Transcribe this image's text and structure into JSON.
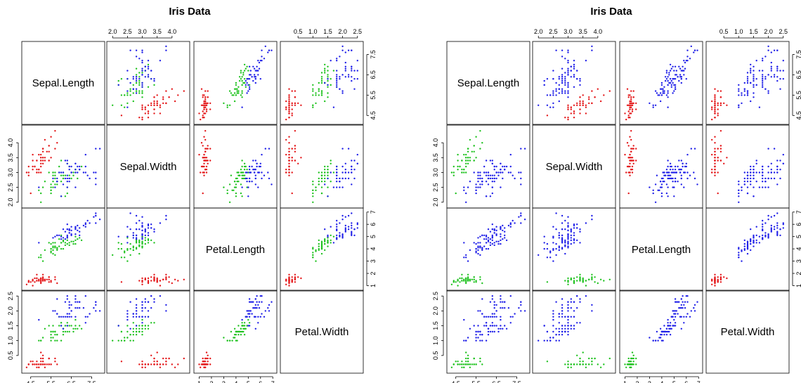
{
  "chart_data": [
    {
      "type": "scatter",
      "title": "Iris Data",
      "variables": [
        "Sepal.Length",
        "Sepal.Width",
        "Petal.Length",
        "Petal.Width"
      ],
      "axes": {
        "Sepal.Length": {
          "lim": [
            4.2,
            8.0
          ],
          "ticks": [
            4.5,
            5.5,
            6.5,
            7.5
          ],
          "tick_labels": [
            "4.5",
            "5.5",
            "6.5",
            "7.5"
          ]
        },
        "Sepal.Width": {
          "lim": [
            1.9,
            4.5
          ],
          "ticks": [
            2.0,
            2.5,
            3.0,
            3.5,
            4.0
          ],
          "tick_labels": [
            "2.0",
            "2.5",
            "3.0",
            "3.5",
            "4.0"
          ]
        },
        "Petal.Length": {
          "lim": [
            0.8,
            7.1
          ],
          "ticks": [
            1,
            2,
            3,
            4,
            5,
            6,
            7
          ],
          "tick_labels": [
            "1",
            "2",
            "3",
            "4",
            "5",
            "6",
            "7"
          ]
        },
        "Petal.Width": {
          "lim": [
            0.0,
            2.6
          ],
          "ticks": [
            0.5,
            1.0,
            1.5,
            2.0,
            2.5
          ],
          "tick_labels": [
            "0.5",
            "1.0",
            "1.5",
            "2.0",
            "2.5"
          ]
        }
      },
      "groups": [
        {
          "color": "#e41a1c",
          "points": [
            [
              5.1,
              3.5,
              1.4,
              0.2
            ],
            [
              4.9,
              3.0,
              1.4,
              0.2
            ],
            [
              4.7,
              3.2,
              1.3,
              0.2
            ],
            [
              4.6,
              3.1,
              1.5,
              0.2
            ],
            [
              5.0,
              3.6,
              1.4,
              0.2
            ],
            [
              5.4,
              3.9,
              1.7,
              0.4
            ],
            [
              4.6,
              3.4,
              1.4,
              0.3
            ],
            [
              5.0,
              3.4,
              1.5,
              0.2
            ],
            [
              4.4,
              2.9,
              1.4,
              0.2
            ],
            [
              4.9,
              3.1,
              1.5,
              0.1
            ],
            [
              5.4,
              3.7,
              1.5,
              0.2
            ],
            [
              4.8,
              3.4,
              1.6,
              0.2
            ],
            [
              4.8,
              3.0,
              1.4,
              0.1
            ],
            [
              4.3,
              3.0,
              1.1,
              0.1
            ],
            [
              5.8,
              4.0,
              1.2,
              0.2
            ],
            [
              5.7,
              4.4,
              1.5,
              0.4
            ],
            [
              5.4,
              3.9,
              1.3,
              0.4
            ],
            [
              5.1,
              3.5,
              1.4,
              0.3
            ],
            [
              5.7,
              3.8,
              1.7,
              0.3
            ],
            [
              5.1,
              3.8,
              1.5,
              0.3
            ],
            [
              5.4,
              3.4,
              1.7,
              0.2
            ],
            [
              5.1,
              3.7,
              1.5,
              0.4
            ],
            [
              4.6,
              3.6,
              1.0,
              0.2
            ],
            [
              5.1,
              3.3,
              1.7,
              0.5
            ],
            [
              4.8,
              3.4,
              1.9,
              0.2
            ],
            [
              5.0,
              3.0,
              1.6,
              0.2
            ],
            [
              5.0,
              3.4,
              1.6,
              0.4
            ],
            [
              5.2,
              3.5,
              1.5,
              0.2
            ],
            [
              5.2,
              3.4,
              1.4,
              0.2
            ],
            [
              4.7,
              3.2,
              1.6,
              0.2
            ],
            [
              4.8,
              3.1,
              1.6,
              0.2
            ],
            [
              5.4,
              3.4,
              1.5,
              0.4
            ],
            [
              5.2,
              4.1,
              1.5,
              0.1
            ],
            [
              5.5,
              4.2,
              1.4,
              0.2
            ],
            [
              4.9,
              3.1,
              1.5,
              0.2
            ],
            [
              5.0,
              3.2,
              1.2,
              0.2
            ],
            [
              5.5,
              3.5,
              1.3,
              0.2
            ],
            [
              4.9,
              3.6,
              1.4,
              0.1
            ],
            [
              4.4,
              3.0,
              1.3,
              0.2
            ],
            [
              5.1,
              3.4,
              1.5,
              0.2
            ],
            [
              5.0,
              3.5,
              1.3,
              0.3
            ],
            [
              4.5,
              2.3,
              1.3,
              0.3
            ],
            [
              4.4,
              3.2,
              1.3,
              0.2
            ],
            [
              5.0,
              3.5,
              1.6,
              0.6
            ],
            [
              5.1,
              3.8,
              1.9,
              0.4
            ],
            [
              4.8,
              3.0,
              1.4,
              0.3
            ],
            [
              5.1,
              3.8,
              1.6,
              0.2
            ],
            [
              4.6,
              3.2,
              1.4,
              0.2
            ],
            [
              5.3,
              3.7,
              1.5,
              0.2
            ],
            [
              5.0,
              3.3,
              1.4,
              0.2
            ]
          ]
        },
        {
          "color": "#22c322",
          "points": [
            [
              7.0,
              3.2,
              4.7,
              1.4
            ],
            [
              6.4,
              3.2,
              4.5,
              1.5
            ],
            [
              6.9,
              3.1,
              4.9,
              1.5
            ],
            [
              5.5,
              2.3,
              4.0,
              1.3
            ],
            [
              6.5,
              2.8,
              4.6,
              1.5
            ],
            [
              5.7,
              2.8,
              4.5,
              1.3
            ],
            [
              6.3,
              3.3,
              4.7,
              1.6
            ],
            [
              4.9,
              2.4,
              3.3,
              1.0
            ],
            [
              6.6,
              2.9,
              4.6,
              1.3
            ],
            [
              5.2,
              2.7,
              3.9,
              1.4
            ],
            [
              5.0,
              2.0,
              3.5,
              1.0
            ],
            [
              5.9,
              3.0,
              4.2,
              1.5
            ],
            [
              6.0,
              2.2,
              4.0,
              1.0
            ],
            [
              6.1,
              2.9,
              4.7,
              1.4
            ],
            [
              5.6,
              2.9,
              3.6,
              1.3
            ],
            [
              6.7,
              3.1,
              4.4,
              1.4
            ],
            [
              5.6,
              3.0,
              4.5,
              1.5
            ],
            [
              5.8,
              2.7,
              4.1,
              1.0
            ],
            [
              6.2,
              2.2,
              4.5,
              1.5
            ],
            [
              5.6,
              2.5,
              3.9,
              1.1
            ],
            [
              5.9,
              3.2,
              4.8,
              1.8
            ],
            [
              6.1,
              2.8,
              4.0,
              1.3
            ],
            [
              6.3,
              2.5,
              4.9,
              1.5
            ],
            [
              6.1,
              2.8,
              4.7,
              1.2
            ],
            [
              6.4,
              2.9,
              4.3,
              1.3
            ],
            [
              6.6,
              3.0,
              4.4,
              1.4
            ],
            [
              6.8,
              2.8,
              4.8,
              1.4
            ],
            [
              6.7,
              3.0,
              5.0,
              1.7
            ],
            [
              6.0,
              2.9,
              4.5,
              1.5
            ],
            [
              5.7,
              2.6,
              3.5,
              1.0
            ],
            [
              5.5,
              2.4,
              3.8,
              1.1
            ],
            [
              5.5,
              2.4,
              3.7,
              1.0
            ],
            [
              5.8,
              2.7,
              3.9,
              1.2
            ],
            [
              6.0,
              2.7,
              5.1,
              1.6
            ],
            [
              5.4,
              3.0,
              4.5,
              1.5
            ],
            [
              6.0,
              3.4,
              4.5,
              1.6
            ],
            [
              6.7,
              3.1,
              4.7,
              1.5
            ],
            [
              6.3,
              2.3,
              4.4,
              1.3
            ],
            [
              5.6,
              3.0,
              4.1,
              1.3
            ],
            [
              5.5,
              2.5,
              4.0,
              1.3
            ],
            [
              5.5,
              2.6,
              4.4,
              1.2
            ],
            [
              6.1,
              3.0,
              4.6,
              1.4
            ],
            [
              5.8,
              2.6,
              4.0,
              1.2
            ],
            [
              5.0,
              2.3,
              3.3,
              1.0
            ],
            [
              5.6,
              2.7,
              4.2,
              1.3
            ],
            [
              5.7,
              3.0,
              4.2,
              1.2
            ],
            [
              5.7,
              2.9,
              4.2,
              1.3
            ],
            [
              6.2,
              2.9,
              4.3,
              1.3
            ],
            [
              5.1,
              2.5,
              3.0,
              1.1
            ],
            [
              5.7,
              2.8,
              4.1,
              1.3
            ]
          ]
        },
        {
          "color": "#2222e8",
          "points": [
            [
              6.3,
              3.3,
              6.0,
              2.5
            ],
            [
              5.8,
              2.7,
              5.1,
              1.9
            ],
            [
              7.1,
              3.0,
              5.9,
              2.1
            ],
            [
              6.3,
              2.9,
              5.6,
              1.8
            ],
            [
              6.5,
              3.0,
              5.8,
              2.2
            ],
            [
              7.6,
              3.0,
              6.6,
              2.1
            ],
            [
              4.9,
              2.5,
              4.5,
              1.7
            ],
            [
              7.3,
              2.9,
              6.3,
              1.8
            ],
            [
              6.7,
              2.5,
              5.8,
              1.8
            ],
            [
              7.2,
              3.6,
              6.1,
              2.5
            ],
            [
              6.5,
              3.2,
              5.1,
              2.0
            ],
            [
              6.4,
              2.7,
              5.3,
              1.9
            ],
            [
              6.8,
              3.0,
              5.5,
              2.1
            ],
            [
              5.7,
              2.5,
              5.0,
              2.0
            ],
            [
              5.8,
              2.8,
              5.1,
              2.4
            ],
            [
              6.4,
              3.2,
              5.3,
              2.3
            ],
            [
              6.5,
              3.0,
              5.5,
              1.8
            ],
            [
              7.7,
              3.8,
              6.7,
              2.2
            ],
            [
              7.7,
              2.6,
              6.9,
              2.3
            ],
            [
              6.0,
              2.2,
              5.0,
              1.5
            ],
            [
              6.9,
              3.2,
              5.7,
              2.3
            ],
            [
              5.6,
              2.8,
              4.9,
              2.0
            ],
            [
              7.7,
              2.8,
              6.7,
              2.0
            ],
            [
              6.3,
              2.7,
              4.9,
              1.8
            ],
            [
              6.7,
              3.3,
              5.7,
              2.1
            ],
            [
              7.2,
              3.2,
              6.0,
              1.8
            ],
            [
              6.2,
              2.8,
              4.8,
              1.8
            ],
            [
              6.1,
              3.0,
              4.9,
              1.8
            ],
            [
              6.4,
              2.8,
              5.6,
              2.1
            ],
            [
              7.2,
              3.0,
              5.8,
              1.6
            ],
            [
              7.4,
              2.8,
              6.1,
              1.9
            ],
            [
              7.9,
              3.8,
              6.4,
              2.0
            ],
            [
              6.4,
              2.8,
              5.6,
              2.2
            ],
            [
              6.3,
              2.8,
              5.1,
              1.5
            ],
            [
              6.1,
              2.6,
              5.6,
              1.4
            ],
            [
              7.7,
              3.0,
              6.1,
              2.3
            ],
            [
              6.3,
              3.4,
              5.6,
              2.4
            ],
            [
              6.4,
              3.1,
              5.5,
              1.8
            ],
            [
              6.0,
              3.0,
              4.8,
              1.8
            ],
            [
              6.9,
              3.1,
              5.4,
              2.1
            ],
            [
              6.7,
              3.1,
              5.6,
              2.4
            ],
            [
              6.9,
              3.1,
              5.1,
              2.3
            ],
            [
              5.8,
              2.7,
              5.1,
              1.9
            ],
            [
              6.8,
              3.2,
              5.9,
              2.3
            ],
            [
              6.7,
              3.3,
              5.7,
              2.5
            ],
            [
              6.7,
              3.0,
              5.2,
              2.3
            ],
            [
              6.3,
              2.5,
              5.0,
              1.9
            ],
            [
              6.5,
              3.0,
              5.2,
              2.0
            ],
            [
              6.2,
              3.4,
              5.4,
              2.3
            ],
            [
              5.9,
              3.0,
              5.1,
              1.8
            ]
          ]
        }
      ]
    },
    {
      "type": "scatter",
      "title": "Iris Data",
      "variables": [
        "Sepal.Length",
        "Sepal.Width",
        "Petal.Length",
        "Petal.Width"
      ],
      "axes": {
        "Sepal.Length": {
          "lim": [
            4.2,
            8.0
          ],
          "ticks": [
            4.5,
            5.5,
            6.5,
            7.5
          ],
          "tick_labels": [
            "4.5",
            "5.5",
            "6.5",
            "7.5"
          ]
        },
        "Sepal.Width": {
          "lim": [
            1.9,
            4.5
          ],
          "ticks": [
            2.0,
            2.5,
            3.0,
            3.5,
            4.0
          ],
          "tick_labels": [
            "2.0",
            "2.5",
            "3.0",
            "3.5",
            "4.0"
          ]
        },
        "Petal.Length": {
          "lim": [
            0.8,
            7.1
          ],
          "ticks": [
            1,
            2,
            3,
            4,
            5,
            6,
            7
          ],
          "tick_labels": [
            "1",
            "2",
            "3",
            "4",
            "5",
            "6",
            "7"
          ]
        },
        "Petal.Width": {
          "lim": [
            0.0,
            2.6
          ],
          "ticks": [
            0.5,
            1.0,
            1.5,
            2.0,
            2.5
          ],
          "tick_labels": [
            "0.5",
            "1.0",
            "1.5",
            "2.0",
            "2.5"
          ]
        }
      },
      "groups": [
        {
          "color": "#e41a1c",
          "panel_mode": "upper",
          "points_from": 0
        },
        {
          "color": "#22c322",
          "panel_mode": "lower",
          "points_from": 0
        },
        {
          "color": "#2222e8",
          "panel_mode": "both",
          "points_from": 1,
          "also_from": 2
        }
      ]
    }
  ]
}
